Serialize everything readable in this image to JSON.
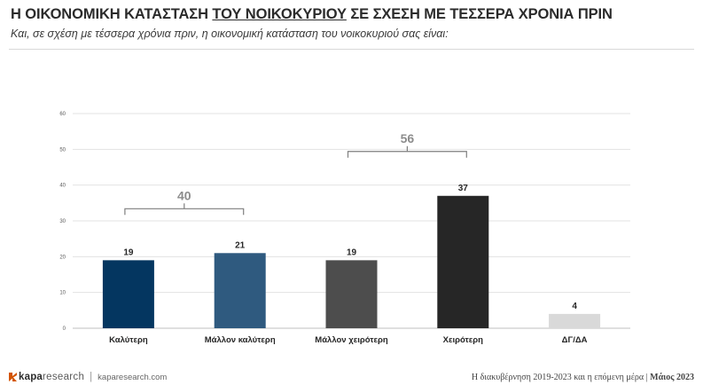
{
  "header": {
    "title_part1": "Η ΟΙΚΟΝΟΜΙΚΗ ΚΑΤΑΣΤΑΣΗ ",
    "title_underlined": "ΤΟΥ ΝΟΙΚΟΚΥΡΙΟΥ",
    "title_part2": " ΣΕ ΣΧΕΣΗ ΜΕ ΤΕΣΣΕΡΑ ΧΡΟΝΙΑ ΠΡΙΝ",
    "subtitle": "Και, σε σχέση με τέσσερα χρόνια πριν, η οικονομική κατάσταση του νοικοκυριού σας είναι:"
  },
  "chart_data": {
    "type": "bar",
    "categories": [
      "Καλύτερη",
      "Μάλλον καλύτερη",
      "Μάλλον χειρότερη",
      "Χειρότερη",
      "ΔΓ/ΔΑ"
    ],
    "values": [
      19,
      21,
      19,
      37,
      4
    ],
    "colors": [
      "#043660",
      "#2f5a7f",
      "#4d4d4d",
      "#262626",
      "#d9d9d9"
    ],
    "ylim": [
      0,
      60
    ],
    "yticks": [
      0,
      10,
      20,
      30,
      40,
      50,
      60
    ],
    "grid": true,
    "groups": [
      {
        "label": "40",
        "from": 0,
        "to": 1
      },
      {
        "label": "56",
        "from": 2,
        "to": 3
      }
    ]
  },
  "footer": {
    "logo_kapa": "kapa",
    "logo_research": "research",
    "separator": "|",
    "url": "kaparesearch.com",
    "right_text": "Η διακυβέρνηση 2019-2023 και η επόμενη μέρα | ",
    "right_date": "Μάιος 2023"
  }
}
